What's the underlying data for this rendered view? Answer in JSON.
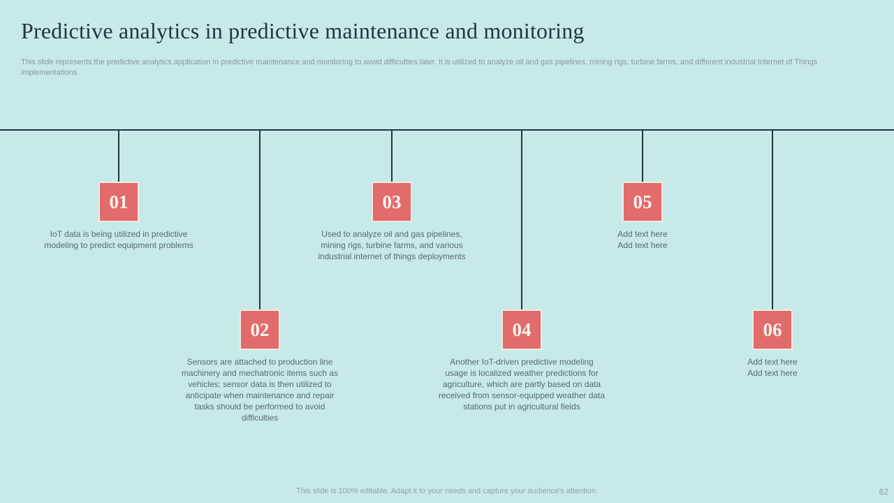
{
  "slide": {
    "title": "Predictive analytics in predictive maintenance and monitoring",
    "subtitle": "This slide represents the predictive analytics application in predictive maintenance and monitoring to avoid difficulties later. It is utilized to analyze oil and gas pipelines, mining rigs, turbine farms, and different industrial Internet of Things implementations.",
    "footer": "This slide is 100% editable. Adapt it to your needs and capture your audience's attention.",
    "page_number": "62",
    "colors": {
      "background": "#c7eae8",
      "accent_box": "#e26b6b",
      "box_border": "#f3eae3",
      "line": "#1f3640",
      "title_text": "#21363d",
      "body_text": "#58696d",
      "muted_text": "#86989b"
    }
  },
  "timeline": {
    "items": [
      {
        "number": "01",
        "position": "top",
        "text": "IoT data is being utilized in predictive modeling to predict equipment problems"
      },
      {
        "number": "02",
        "position": "bottom",
        "text": "Sensors are attached to production line machinery and mechatronic items such as vehicles; sensor data is then utilized to anticipate when maintenance and repair tasks should be performed to avoid difficulties"
      },
      {
        "number": "03",
        "position": "top",
        "text": "Used to analyze oil and gas pipelines, mining rigs, turbine farms, and various industrial internet of things deployments"
      },
      {
        "number": "04",
        "position": "bottom",
        "text": "Another IoT-driven predictive modeling usage is localized weather predictions for agriculture, which are partly based on data received from sensor-equipped weather data stations put in agricultural fields"
      },
      {
        "number": "05",
        "position": "top",
        "text": "Add text here\nAdd text here"
      },
      {
        "number": "06",
        "position": "bottom",
        "text": "Add text here\nAdd text here"
      }
    ]
  }
}
